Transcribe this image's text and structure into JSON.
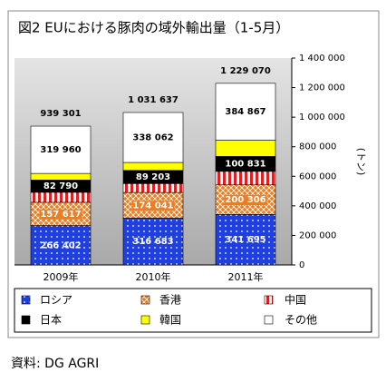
{
  "chart_data": {
    "type": "stacked-bar",
    "title": "図2 EUにおける豚肉の域外輸出量（1-5月）",
    "y_label": "(トン)",
    "source": "資料: DG AGRI",
    "categories": [
      "2009年",
      "2010年",
      "2011年"
    ],
    "series": [
      {
        "name": "ロシア",
        "color": "#1f3fe0",
        "values": [
          266402,
          316683,
          341695
        ],
        "value_labels": [
          "266 402",
          "316 683",
          "341 695"
        ]
      },
      {
        "name": "香港",
        "color": "#f07c20",
        "values": [
          157617,
          174041,
          200306
        ],
        "value_labels": [
          "157 617",
          "174 041",
          "200 306"
        ]
      },
      {
        "name": "中国",
        "color": "#e02020",
        "values": [
          67532,
          60000,
          91371
        ]
      },
      {
        "name": "日本",
        "color": "#000000",
        "values": [
          82790,
          89203,
          100831
        ],
        "value_labels": [
          "82 790",
          "89 203",
          "100 831"
        ]
      },
      {
        "name": "韓国",
        "color": "#ffff00",
        "values": [
          45000,
          53648,
          110000
        ]
      },
      {
        "name": "その他",
        "color": "#ffffff",
        "values": [
          319960,
          338062,
          384867
        ],
        "value_labels": [
          "319 960",
          "338 062",
          "384 867"
        ]
      }
    ],
    "totals": [
      939301,
      1031637,
      1229070
    ],
    "total_labels": [
      "939 301",
      "1 031 637",
      "1 229 070"
    ],
    "ylim": [
      0,
      1400000
    ],
    "yticks": [
      0,
      {
        "value": 200000,
        "label": "200 000"
      },
      {
        "value": 400000,
        "label": "400 000"
      },
      {
        "value": 600000,
        "label": "600 000"
      },
      {
        "value": 800000,
        "label": "800 000"
      },
      {
        "value": 1000000,
        "label": "1 000 000"
      },
      {
        "value": 1200000,
        "label": "1 200 000"
      },
      {
        "value": 1400000,
        "label": "1 400 000"
      }
    ]
  }
}
